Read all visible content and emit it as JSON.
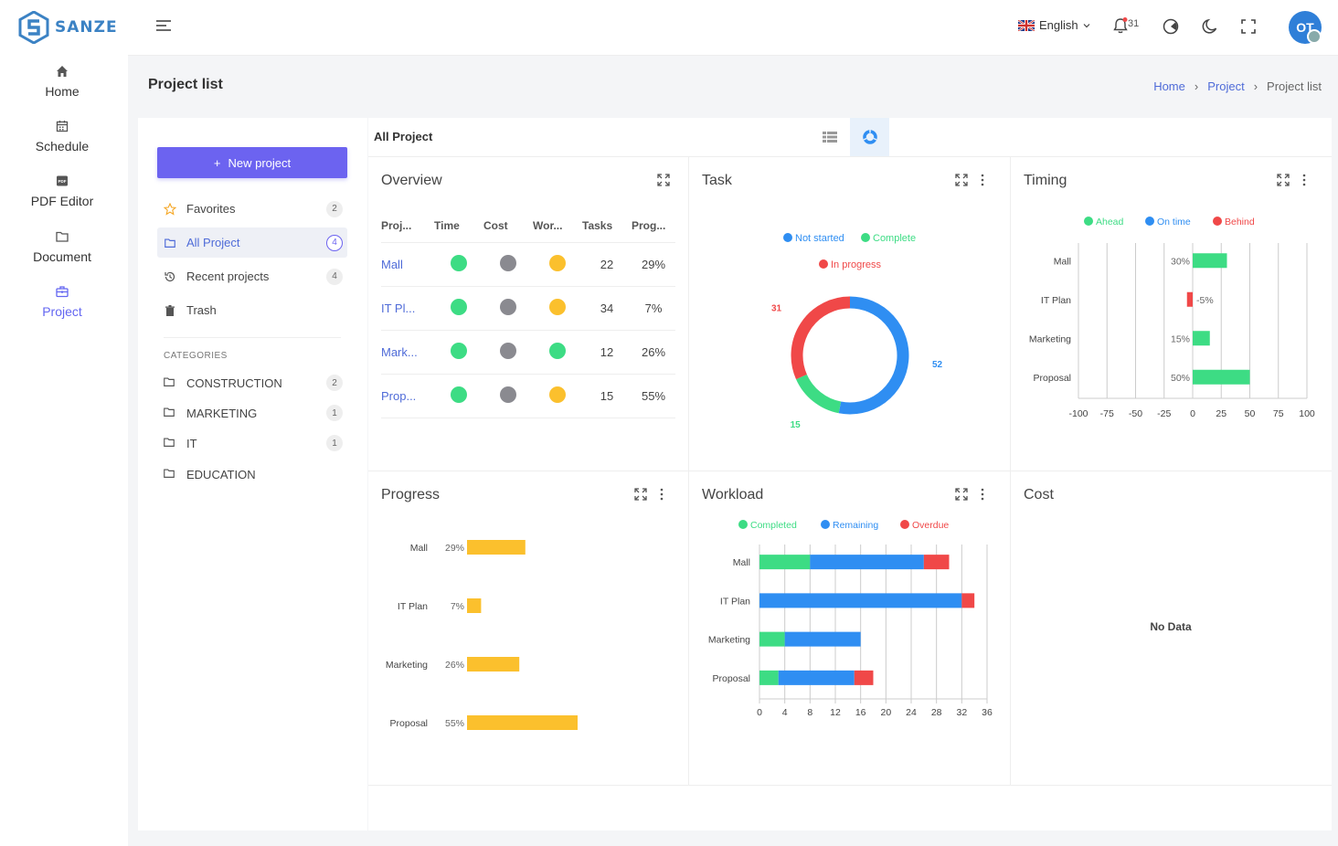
{
  "app": {
    "name": "SANZE"
  },
  "nav": {
    "items": [
      {
        "label": "Home",
        "icon": "home-icon"
      },
      {
        "label": "Schedule",
        "icon": "calendar-icon"
      },
      {
        "label": "PDF Editor",
        "icon": "pdf-icon"
      },
      {
        "label": "Document",
        "icon": "folder-icon"
      },
      {
        "label": "Project",
        "icon": "briefcase-icon",
        "active": true
      }
    ]
  },
  "topbar": {
    "language": "English",
    "notification_count": "31",
    "avatar_initials": "OT"
  },
  "page": {
    "title": "Project list",
    "breadcrumb": [
      "Home",
      "Project",
      "Project list"
    ]
  },
  "sidebar": {
    "new_project_label": "New project",
    "filters": [
      {
        "label": "Favorites",
        "count": "2",
        "icon": "star-icon"
      },
      {
        "label": "All Project",
        "count": "4",
        "icon": "folder-icon",
        "active": true
      },
      {
        "label": "Recent projects",
        "count": "4",
        "icon": "history-icon"
      },
      {
        "label": "Trash",
        "count": "",
        "icon": "trash-icon"
      }
    ],
    "categories_heading": "CATEGORIES",
    "categories": [
      {
        "label": "CONSTRUCTION",
        "count": "2"
      },
      {
        "label": "MARKETING",
        "count": "1"
      },
      {
        "label": "IT",
        "count": "1"
      },
      {
        "label": "EDUCATION",
        "count": ""
      }
    ]
  },
  "main": {
    "title": "All Project"
  },
  "colors": {
    "primary": "#6c63f0",
    "green": "#3ddc84",
    "blue": "#2f8ef2",
    "red": "#f04848",
    "yellow": "#fbc02d",
    "gray": "#8a8a90"
  },
  "overview": {
    "title": "Overview",
    "columns": [
      "Proj...",
      "Time",
      "Cost",
      "Wor...",
      "Tasks",
      "Prog..."
    ],
    "rows": [
      {
        "project": "Mall",
        "time": "green",
        "cost": "gray",
        "workload": "yellow",
        "tasks": "22",
        "progress": "29%"
      },
      {
        "project": "IT Pl...",
        "time": "green",
        "cost": "gray",
        "workload": "yellow",
        "tasks": "34",
        "progress": "7%"
      },
      {
        "project": "Mark...",
        "time": "green",
        "cost": "gray",
        "workload": "green",
        "tasks": "12",
        "progress": "26%"
      },
      {
        "project": "Prop...",
        "time": "green",
        "cost": "gray",
        "workload": "yellow",
        "tasks": "15",
        "progress": "55%"
      }
    ]
  },
  "cards": {
    "task": "Task",
    "timing": "Timing",
    "progress": "Progress",
    "workload": "Workload",
    "cost": "Cost",
    "cost_empty": "No Data"
  },
  "chart_data": [
    {
      "id": "task",
      "type": "pie",
      "title": "Task",
      "legend": [
        "Not started",
        "Complete",
        "In progress"
      ],
      "slices": [
        {
          "name": "Not started",
          "value": 52,
          "color": "#2f8ef2"
        },
        {
          "name": "Complete",
          "value": 15,
          "color": "#3ddc84"
        },
        {
          "name": "In progress",
          "value": 31,
          "color": "#f04848"
        }
      ]
    },
    {
      "id": "timing",
      "type": "bar",
      "orientation": "horizontal",
      "title": "Timing",
      "legend": [
        {
          "name": "Ahead",
          "color": "#3ddc84"
        },
        {
          "name": "On time",
          "color": "#2f8ef2"
        },
        {
          "name": "Behind",
          "color": "#f04848"
        }
      ],
      "categories": [
        "Mall",
        "IT Plan",
        "Marketing",
        "Proposal"
      ],
      "values": [
        30,
        -5,
        15,
        50
      ],
      "labels": [
        "30%",
        "-5%",
        "15%",
        "50%"
      ],
      "xlim": [
        -100,
        100
      ],
      "xticks": [
        -100,
        -75,
        -50,
        -25,
        0,
        25,
        50,
        75,
        100
      ],
      "grid": true
    },
    {
      "id": "progress",
      "type": "bar",
      "orientation": "horizontal",
      "title": "Progress",
      "categories": [
        "Mall",
        "IT Plan",
        "Marketing",
        "Proposal"
      ],
      "values": [
        29,
        7,
        26,
        55
      ],
      "labels": [
        "29%",
        "7%",
        "26%",
        "55%"
      ],
      "color": "#fbc02d",
      "xlim": [
        0,
        100
      ]
    },
    {
      "id": "workload",
      "type": "bar",
      "orientation": "horizontal",
      "stacked": true,
      "title": "Workload",
      "categories": [
        "Mall",
        "IT Plan",
        "Marketing",
        "Proposal"
      ],
      "series": [
        {
          "name": "Completed",
          "color": "#3ddc84",
          "values": [
            8,
            0,
            4,
            3
          ]
        },
        {
          "name": "Remaining",
          "color": "#2f8ef2",
          "values": [
            18,
            32,
            12,
            12
          ]
        },
        {
          "name": "Overdue",
          "color": "#f04848",
          "values": [
            4,
            2,
            0,
            3
          ]
        }
      ],
      "xlim": [
        0,
        36
      ],
      "xticks": [
        0,
        4,
        8,
        12,
        16,
        20,
        24,
        28,
        32,
        36
      ],
      "grid": true
    }
  ]
}
